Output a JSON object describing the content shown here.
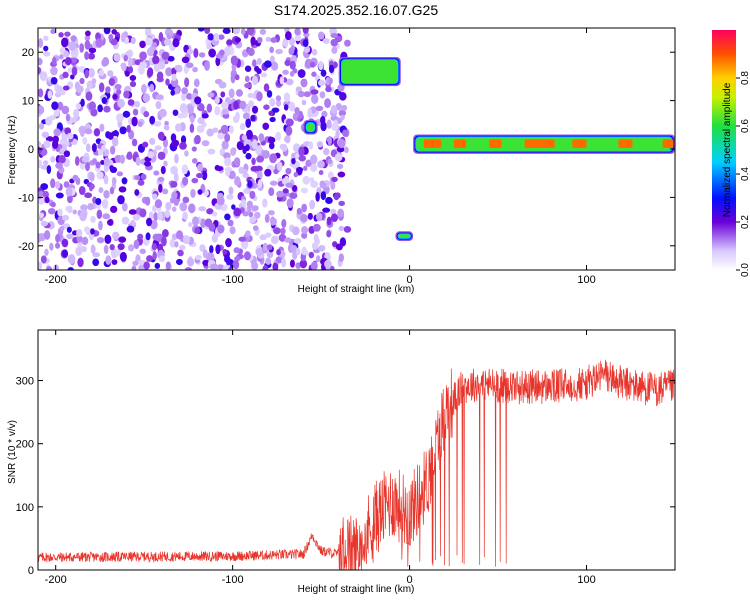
{
  "title": "S174.2025.352.16.07.G25",
  "chart_data": [
    {
      "type": "heatmap",
      "xlabel": "Height of straight line (km)",
      "ylabel": "Frequency (Hz)",
      "xlim": [
        -210,
        150
      ],
      "ylim": [
        -25,
        25
      ],
      "xticks": [
        -200,
        -100,
        0,
        100
      ],
      "yticks": [
        -20,
        -10,
        0,
        10,
        20
      ],
      "colorbar_label": "Normalized spectral amplitude",
      "colorbar_ticks": [
        0.0,
        0.2,
        0.4,
        0.6,
        0.8
      ],
      "colorbar_range": [
        0,
        1
      ],
      "noise_region": [
        -210,
        -35
      ],
      "features": [
        {
          "x0": -40,
          "x1": -5,
          "y0": 13,
          "y1": 19
        },
        {
          "x0": -60,
          "x1": -52,
          "y0": 3,
          "y1": 6
        },
        {
          "x0": -8,
          "x1": 2,
          "y0": -19,
          "y1": -17
        },
        {
          "x0": 2,
          "x1": 150,
          "y0": -1,
          "y1": 3
        }
      ]
    },
    {
      "type": "line",
      "xlabel": "Height of straight line (km)",
      "ylabel": "SNR (10 * v/v)",
      "xlim": [
        -210,
        150
      ],
      "ylim": [
        0,
        380
      ],
      "xticks": [
        -200,
        -100,
        0,
        100
      ],
      "yticks": [
        0,
        100,
        200,
        300
      ],
      "series": [
        {
          "name": "SNR",
          "color": "#e8342a",
          "x": [
            -210,
            -100,
            -60,
            -55,
            -50,
            -40,
            -30,
            -20,
            -10,
            0,
            10,
            20,
            30,
            40,
            60,
            80,
            100,
            110,
            120,
            130,
            140,
            150
          ],
          "y": [
            20,
            22,
            25,
            55,
            30,
            25,
            30,
            80,
            110,
            90,
            140,
            250,
            290,
            295,
            290,
            290,
            295,
            310,
            295,
            290,
            285,
            290
          ]
        }
      ]
    }
  ]
}
